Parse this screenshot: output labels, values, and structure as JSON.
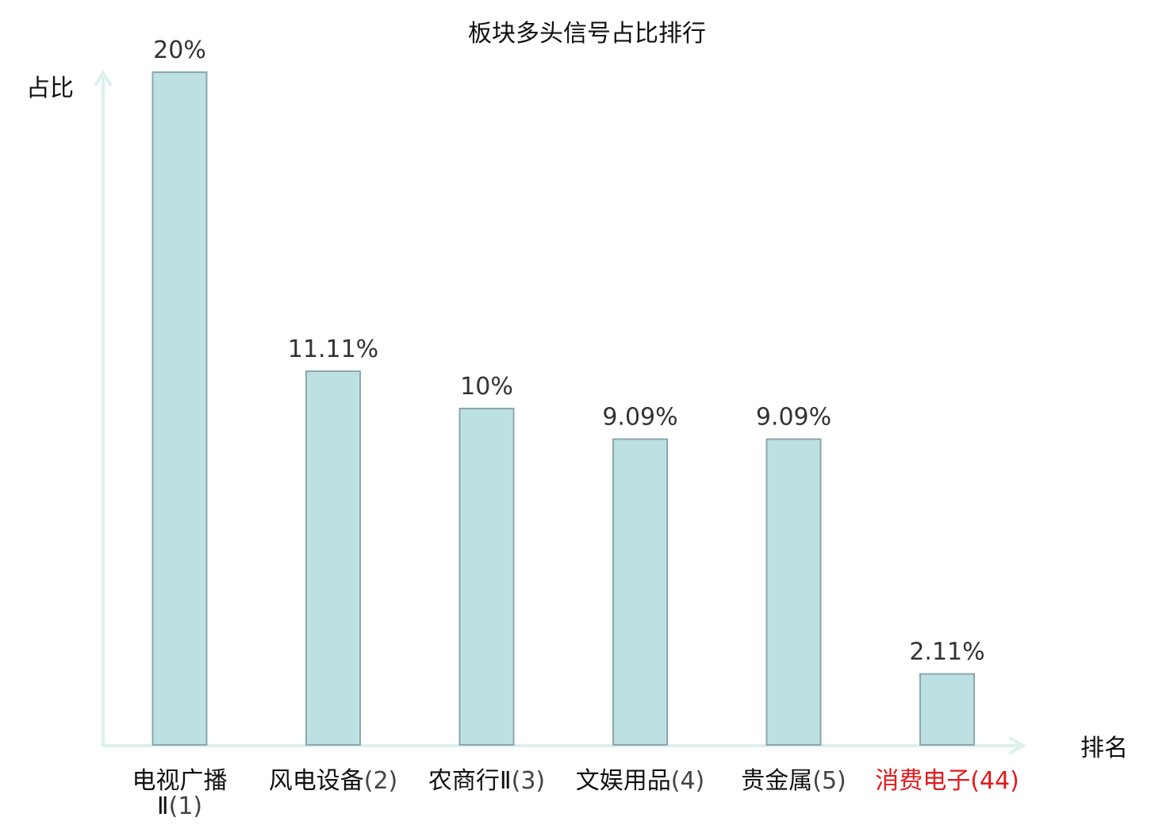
{
  "chart_data": {
    "type": "bar",
    "title": "板块多头信号占比排行",
    "ylabel": "占比",
    "xlabel": "排名",
    "categories": [
      {
        "name": "电视广播Ⅱ",
        "rank": "(1)"
      },
      {
        "name": "风电设备",
        "rank": "(2)"
      },
      {
        "name": "农商行Ⅱ",
        "rank": "(3)"
      },
      {
        "name": "文娱用品",
        "rank": "(4)"
      },
      {
        "name": "贵金属",
        "rank": "(5)"
      },
      {
        "name": "消费电子",
        "rank": "(44)"
      }
    ],
    "values": [
      20,
      11.11,
      10,
      9.09,
      9.09,
      2.11
    ],
    "value_labels": [
      "20%",
      "11.11%",
      "10%",
      "9.09%",
      "9.09%",
      "2.11%"
    ],
    "highlight_index": 5,
    "ylim": [
      0,
      20
    ],
    "grid": false,
    "colors": {
      "bar_fill": "#bde0e3",
      "bar_stroke": "#8aa8ad",
      "axis": "#ddf1ef",
      "highlight_text": "#e31a1c"
    }
  }
}
